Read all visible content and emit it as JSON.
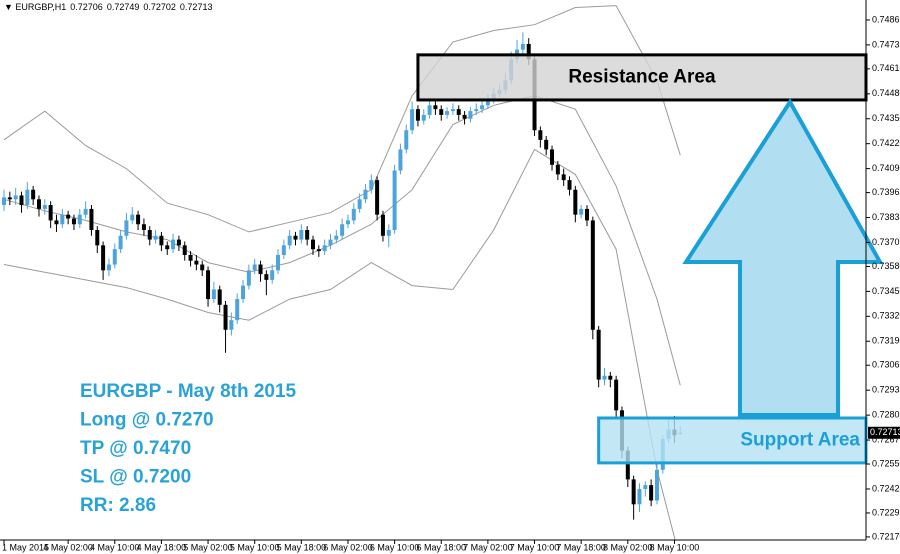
{
  "chart_data": {
    "type": "candlestick",
    "symbol": "EURGBP,H1",
    "up_color": "#4da3dc",
    "down_color": "#000000",
    "ylim": [
      0.72154,
      0.74969
    ],
    "yticks": [
      0.74865,
      0.74735,
      {
        "value": 0.7461,
        "label": "0.74610"
      },
      {
        "value": 0.7448,
        "label": "0.74480"
      },
      {
        "value": 0.7435,
        "label": "0.74350"
      },
      {
        "value": 0.7422,
        "label": "0.74220"
      },
      {
        "value": 0.7409,
        "label": "0.74090"
      },
      0.73965,
      0.73835,
      0.73705,
      {
        "value": 0.7358,
        "label": "0.73580"
      },
      {
        "value": 0.7345,
        "label": "0.73450"
      },
      {
        "value": 0.7332,
        "label": "0.73320"
      },
      {
        "value": 0.7319,
        "label": "0.73190"
      },
      0.73065,
      0.72935,
      0.72805,
      0.72675,
      {
        "value": 0.7255,
        "label": "0.72550"
      },
      {
        "value": 0.7242,
        "label": "0.72420"
      },
      0.72295,
      {
        "value": 0.7217,
        "label": "0.72170"
      }
    ],
    "xticks": [
      {
        "value": 0,
        "label": "1 May 2015"
      },
      {
        "value": 11,
        "label": "4 May 02:00"
      },
      {
        "value": 19,
        "label": "4 May 10:00"
      },
      {
        "value": 27,
        "label": "4 May 18:00"
      },
      {
        "value": 35,
        "label": "5 May 02:00"
      },
      {
        "value": 43,
        "label": "5 May 10:00"
      },
      {
        "value": 51,
        "label": "5 May 18:00"
      },
      {
        "value": 59,
        "label": "6 May 02:00"
      },
      {
        "value": 67,
        "label": "6 May 10:00"
      },
      {
        "value": 75,
        "label": "6 May 18:00"
      },
      {
        "value": 83,
        "label": "7 May 02:00"
      },
      {
        "value": 91,
        "label": "7 May 10:00"
      },
      {
        "value": 99,
        "label": "7 May 18:00"
      },
      {
        "value": 107,
        "label": "8 May 02:00"
      },
      {
        "value": 115,
        "label": "8 May 10:00"
      }
    ],
    "candles": [
      [
        0.739,
        0.7398,
        0.7387,
        0.7394
      ],
      [
        0.7394,
        0.7397,
        0.739,
        0.7393
      ],
      [
        0.7393,
        0.7399,
        0.739,
        0.7395
      ],
      [
        0.7395,
        0.7397,
        0.7386,
        0.739
      ],
      [
        0.739,
        0.7402,
        0.7388,
        0.7398
      ],
      [
        0.7398,
        0.74,
        0.739,
        0.7393
      ],
      [
        0.7393,
        0.7395,
        0.7384,
        0.7388
      ],
      [
        0.7388,
        0.7393,
        0.7385,
        0.739
      ],
      [
        0.739,
        0.7392,
        0.7378,
        0.7382
      ],
      [
        0.7382,
        0.7385,
        0.7376,
        0.738
      ],
      [
        0.738,
        0.7388,
        0.7378,
        0.7385
      ],
      [
        0.7385,
        0.7387,
        0.738,
        0.7383
      ],
      [
        0.7383,
        0.7385,
        0.7377,
        0.738
      ],
      [
        0.738,
        0.7388,
        0.7378,
        0.7385
      ],
      [
        0.7385,
        0.7392,
        0.7383,
        0.7388
      ],
      [
        0.7388,
        0.739,
        0.7374,
        0.7377
      ],
      [
        0.7377,
        0.7379,
        0.7365,
        0.7369
      ],
      [
        0.7369,
        0.7371,
        0.7351,
        0.7356
      ],
      [
        0.7356,
        0.7362,
        0.7353,
        0.7359
      ],
      [
        0.7359,
        0.737,
        0.7357,
        0.7367
      ],
      [
        0.7367,
        0.7377,
        0.7365,
        0.7374
      ],
      [
        0.7374,
        0.7386,
        0.7372,
        0.7382
      ],
      [
        0.7382,
        0.7389,
        0.738,
        0.7385
      ],
      [
        0.7385,
        0.7387,
        0.7377,
        0.738
      ],
      [
        0.738,
        0.7383,
        0.7374,
        0.7377
      ],
      [
        0.7377,
        0.7379,
        0.7369,
        0.7372
      ],
      [
        0.7372,
        0.7377,
        0.737,
        0.7374
      ],
      [
        0.7374,
        0.7376,
        0.7366,
        0.7369
      ],
      [
        0.7369,
        0.7371,
        0.7364,
        0.7367
      ],
      [
        0.7367,
        0.7375,
        0.7365,
        0.7372
      ],
      [
        0.7372,
        0.7374,
        0.7366,
        0.7369
      ],
      [
        0.7369,
        0.7371,
        0.7361,
        0.7364
      ],
      [
        0.7364,
        0.7366,
        0.7358,
        0.7361
      ],
      [
        0.7361,
        0.7364,
        0.7356,
        0.7359
      ],
      [
        0.7359,
        0.7361,
        0.7353,
        0.7356
      ],
      [
        0.7356,
        0.7358,
        0.7337,
        0.7341
      ],
      [
        0.7341,
        0.735,
        0.7339,
        0.7346
      ],
      [
        0.7346,
        0.7348,
        0.7334,
        0.7338
      ],
      [
        0.7338,
        0.734,
        0.7313,
        0.7325
      ],
      [
        0.7325,
        0.7334,
        0.7322,
        0.733
      ],
      [
        0.733,
        0.7344,
        0.7328,
        0.7341
      ],
      [
        0.7341,
        0.7351,
        0.7339,
        0.7348
      ],
      [
        0.7348,
        0.7359,
        0.7346,
        0.7356
      ],
      [
        0.7356,
        0.7362,
        0.7354,
        0.7359
      ],
      [
        0.7359,
        0.7361,
        0.735,
        0.7354
      ],
      [
        0.7354,
        0.7356,
        0.7343,
        0.7351
      ],
      [
        0.7351,
        0.7359,
        0.7349,
        0.7356
      ],
      [
        0.7356,
        0.7367,
        0.7354,
        0.7364
      ],
      [
        0.7364,
        0.7372,
        0.7362,
        0.7369
      ],
      [
        0.7369,
        0.7377,
        0.7367,
        0.7374
      ],
      [
        0.7374,
        0.7376,
        0.7369,
        0.7372
      ],
      [
        0.7372,
        0.738,
        0.737,
        0.7377
      ],
      [
        0.7377,
        0.7379,
        0.7369,
        0.7372
      ],
      [
        0.7372,
        0.7374,
        0.7364,
        0.7367
      ],
      [
        0.7367,
        0.7369,
        0.7363,
        0.7366
      ],
      [
        0.7366,
        0.7372,
        0.7364,
        0.7369
      ],
      [
        0.7369,
        0.7375,
        0.7367,
        0.7372
      ],
      [
        0.7372,
        0.7377,
        0.737,
        0.7374
      ],
      [
        0.7374,
        0.7383,
        0.7372,
        0.738
      ],
      [
        0.738,
        0.7385,
        0.7378,
        0.7382
      ],
      [
        0.7382,
        0.7391,
        0.738,
        0.7388
      ],
      [
        0.7388,
        0.7396,
        0.7386,
        0.7393
      ],
      [
        0.7393,
        0.7401,
        0.7391,
        0.7398
      ],
      [
        0.7398,
        0.7406,
        0.7396,
        0.7403
      ],
      [
        0.7403,
        0.7405,
        0.7382,
        0.7385
      ],
      [
        0.7385,
        0.7387,
        0.7371,
        0.7374
      ],
      [
        0.7374,
        0.738,
        0.7368,
        0.7377
      ],
      [
        0.7377,
        0.7411,
        0.7375,
        0.7408
      ],
      [
        0.7408,
        0.7422,
        0.7406,
        0.7419
      ],
      [
        0.7419,
        0.7432,
        0.7417,
        0.7429
      ],
      [
        0.7429,
        0.7444,
        0.7427,
        0.744
      ],
      [
        0.744,
        0.7442,
        0.7431,
        0.7434
      ],
      [
        0.7434,
        0.744,
        0.7432,
        0.7437
      ],
      [
        0.7437,
        0.7446,
        0.7435,
        0.7442
      ],
      [
        0.7442,
        0.7444,
        0.7437,
        0.744
      ],
      [
        0.744,
        0.7442,
        0.7434,
        0.7437
      ],
      [
        0.7437,
        0.7441,
        0.7435,
        0.7439
      ],
      [
        0.7439,
        0.7443,
        0.7437,
        0.744
      ],
      [
        0.744,
        0.7442,
        0.7434,
        0.7437
      ],
      [
        0.7437,
        0.7439,
        0.7432,
        0.7435
      ],
      [
        0.7435,
        0.7441,
        0.7433,
        0.7439
      ],
      [
        0.7439,
        0.7443,
        0.7437,
        0.744
      ],
      [
        0.744,
        0.7445,
        0.7438,
        0.7442
      ],
      [
        0.7442,
        0.7448,
        0.744,
        0.7445
      ],
      [
        0.7445,
        0.7451,
        0.7443,
        0.7448
      ],
      [
        0.7448,
        0.7453,
        0.7446,
        0.745
      ],
      [
        0.745,
        0.7459,
        0.7448,
        0.7455
      ],
      [
        0.7455,
        0.747,
        0.7453,
        0.7466
      ],
      [
        0.7466,
        0.7476,
        0.7464,
        0.7471
      ],
      [
        0.7471,
        0.748,
        0.7469,
        0.7474
      ],
      [
        0.7474,
        0.7477,
        0.7463,
        0.7466
      ],
      [
        0.7466,
        0.7468,
        0.7426,
        0.7429
      ],
      [
        0.7429,
        0.7431,
        0.742,
        0.7424
      ],
      [
        0.7424,
        0.7426,
        0.7416,
        0.7419
      ],
      [
        0.7419,
        0.7421,
        0.7408,
        0.7411
      ],
      [
        0.7411,
        0.7413,
        0.7403,
        0.7406
      ],
      [
        0.7406,
        0.7409,
        0.74,
        0.7403
      ],
      [
        0.7403,
        0.7405,
        0.7395,
        0.7398
      ],
      [
        0.7398,
        0.74,
        0.7381,
        0.7385
      ],
      [
        0.7385,
        0.739,
        0.7383,
        0.7388
      ],
      [
        0.7388,
        0.739,
        0.7379,
        0.7382
      ],
      [
        0.7382,
        0.7384,
        0.732,
        0.7325
      ],
      [
        0.7325,
        0.7327,
        0.7295,
        0.7299
      ],
      [
        0.7299,
        0.7305,
        0.7296,
        0.7301
      ],
      [
        0.7301,
        0.7303,
        0.7295,
        0.7299
      ],
      [
        0.7299,
        0.7301,
        0.7279,
        0.7283
      ],
      [
        0.7283,
        0.7285,
        0.7258,
        0.7262
      ],
      [
        0.7262,
        0.7264,
        0.7243,
        0.7247
      ],
      [
        0.7247,
        0.7249,
        0.7226,
        0.7234
      ],
      [
        0.7234,
        0.7245,
        0.723,
        0.7242
      ],
      [
        0.7242,
        0.7246,
        0.7238,
        0.7244
      ],
      [
        0.7244,
        0.7247,
        0.7233,
        0.7236
      ],
      [
        0.7236,
        0.7255,
        0.7234,
        0.7252
      ],
      [
        0.7252,
        0.727,
        0.725,
        0.7268
      ],
      [
        0.7268,
        0.7279,
        0.7266,
        0.7273
      ],
      [
        0.7273,
        0.728,
        0.7266,
        0.727
      ],
      [
        0.72706,
        0.72749,
        0.72702,
        0.72713
      ]
    ],
    "x": [
      0,
      7,
      14,
      21,
      28,
      35,
      42,
      49,
      56,
      63,
      70,
      77,
      84,
      91,
      98,
      105,
      112,
      116
    ],
    "series": [
      {
        "color": "#9a9a9a",
        "values": [
          0.7424,
          0.7439,
          0.7421,
          0.7409,
          0.7391,
          0.7385,
          0.7376,
          0.7381,
          0.7386,
          0.7398,
          0.7447,
          0.7475,
          0.7481,
          0.7484,
          0.7493,
          0.7494,
          0.7455,
          0.7416
        ]
      },
      {
        "color": "#9a9a9a",
        "values": [
          0.7393,
          0.7387,
          0.7382,
          0.7376,
          0.7372,
          0.736,
          0.7355,
          0.736,
          0.7369,
          0.738,
          0.7398,
          0.7432,
          0.7442,
          0.7447,
          0.744,
          0.74,
          0.7341,
          0.7296
        ]
      },
      {
        "color": "#9a9a9a",
        "values": [
          0.7359,
          0.7355,
          0.7351,
          0.7347,
          0.7341,
          0.7334,
          0.733,
          0.7341,
          0.7346,
          0.736,
          0.7348,
          0.7346,
          0.7377,
          0.7419,
          0.7406,
          0.7367,
          0.7252,
          0.7205
        ]
      }
    ],
    "zones": [
      {
        "label": "Resistance Area",
        "from": 71,
        "low": 0.74448,
        "high": 0.74683,
        "color": "#d3d3d3",
        "border": "#000000",
        "text_color": "#000000"
      },
      {
        "label": "Support Area",
        "from": 102,
        "low": 0.72556,
        "high": 0.7279,
        "color": "#b4e1f2",
        "border": "#1aa0d6",
        "text_color": "#1aa0d6"
      }
    ],
    "annotation": [
      "EURGBP - May 8th 2015",
      "Long @ 0.7270",
      "TP @ 0.7470",
      "SL @ 0.7200",
      "RR: 2.86"
    ],
    "annotation_color": "#29a3d6"
  }
}
